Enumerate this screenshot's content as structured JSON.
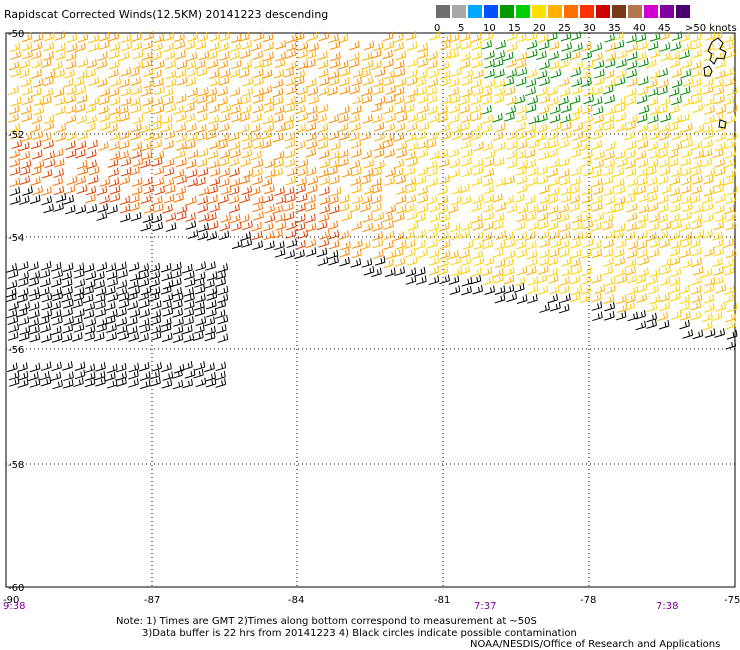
{
  "title": "Rapidscat Corrected Winds(12.5KM) 20141223 descending",
  "legend": {
    "colors": [
      "#6e6e6e",
      "#a8a8a8",
      "#00a8ff",
      "#0050ff",
      "#009a00",
      "#00d000",
      "#ffe000",
      "#ffb000",
      "#ff7000",
      "#ff3000",
      "#d00000",
      "#7a3a1a",
      "#b47850",
      "#d000d0",
      "#8000a0",
      "#4a0070"
    ],
    "labels": [
      "0",
      "5",
      "10",
      "15",
      "20",
      "25",
      "30",
      "35",
      "40",
      "45",
      ">50 knots"
    ]
  },
  "axes": {
    "lat_labels": [
      "-50",
      "-52",
      "-54",
      "-56",
      "-58",
      "-60"
    ],
    "lon_labels": [
      "-90",
      "-87",
      "-84",
      "-81",
      "-78",
      "-75"
    ],
    "times": [
      "9:38",
      "7:37",
      "7:38"
    ]
  },
  "notes": {
    "line1": "Note: 1) Times are GMT 2)Times along bottom correspond to measurement at ~50S",
    "line2": "3)Data buffer is 22 hrs from 20141223 4) Black circles indicate possible contamination",
    "line3": "NOAA/NESDIS/Office of Research and Applications"
  }
}
